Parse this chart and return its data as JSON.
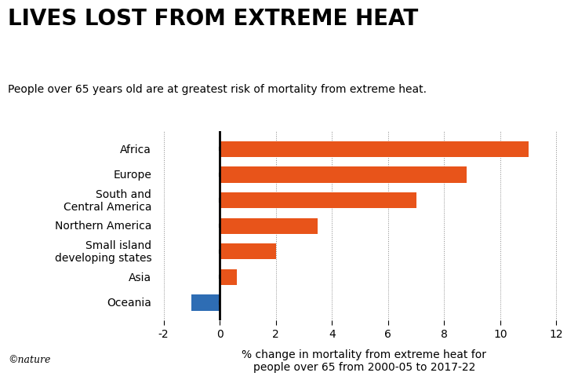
{
  "title": "LIVES LOST FROM EXTREME HEAT",
  "subtitle": "People over 65 years old are at greatest risk of mortality from extreme heat.",
  "xlabel": "% change in mortality from extreme heat for\npeople over 65 from 2000-05 to 2017-22",
  "categories": [
    "Africa",
    "Europe",
    "South and\nCentral America",
    "Northern America",
    "Small island\ndeveloping states",
    "Asia",
    "Oceania"
  ],
  "values": [
    11.0,
    8.8,
    7.0,
    3.5,
    2.0,
    0.6,
    -1.0
  ],
  "colors": [
    "#E8541A",
    "#E8541A",
    "#E8541A",
    "#E8541A",
    "#E8541A",
    "#E8541A",
    "#2E6DB4"
  ],
  "xlim": [
    -2.2,
    12.5
  ],
  "xticks": [
    -2,
    0,
    2,
    4,
    6,
    8,
    10,
    12
  ],
  "background_color": "#FFFFFF",
  "copyright_text": "©nature",
  "bar_height": 0.62,
  "title_fontsize": 20,
  "subtitle_fontsize": 10,
  "tick_fontsize": 10,
  "xlabel_fontsize": 10
}
